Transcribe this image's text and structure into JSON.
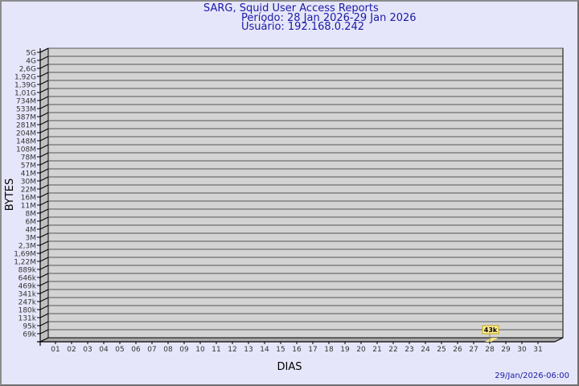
{
  "header": {
    "title": "SARG, Squid User Access Reports",
    "period": "Período: 28 Jan 2026-29 Jan 2026",
    "user": "Usuário: 192.168.0.242"
  },
  "footer": {
    "timestamp": "29/Jan/2026-06:00"
  },
  "colors": {
    "background": "#e6e6fa",
    "title": "#1a1aa6",
    "plot": "#d3d3d3",
    "bar": "#ffe680",
    "label_box": "#ffef9a"
  },
  "chart_data": {
    "type": "bar",
    "style": "3d",
    "xlabel": "DIAS",
    "ylabel": "BYTES",
    "categories": [
      "01",
      "02",
      "03",
      "04",
      "05",
      "06",
      "07",
      "08",
      "09",
      "10",
      "11",
      "12",
      "13",
      "14",
      "15",
      "16",
      "17",
      "18",
      "19",
      "20",
      "21",
      "22",
      "23",
      "24",
      "25",
      "26",
      "27",
      "28",
      "29",
      "30",
      "31"
    ],
    "y_tick_labels": [
      "5G",
      "4G",
      "2,6G",
      "1,92G",
      "1,39G",
      "1,01G",
      "734M",
      "533M",
      "387M",
      "281M",
      "204M",
      "148M",
      "108M",
      "78M",
      "57M",
      "41M",
      "30M",
      "22M",
      "16M",
      "11M",
      "8M",
      "6M",
      "4M",
      "3M",
      "2,3M",
      "1,69M",
      "1,22M",
      "889k",
      "646k",
      "469k",
      "341k",
      "247k",
      "180k",
      "131k",
      "95k",
      "69k"
    ],
    "y_scale": "log",
    "grid": true,
    "series": [
      {
        "points": [
          {
            "x": "28",
            "value": 43000,
            "label": "43k"
          }
        ]
      }
    ]
  }
}
